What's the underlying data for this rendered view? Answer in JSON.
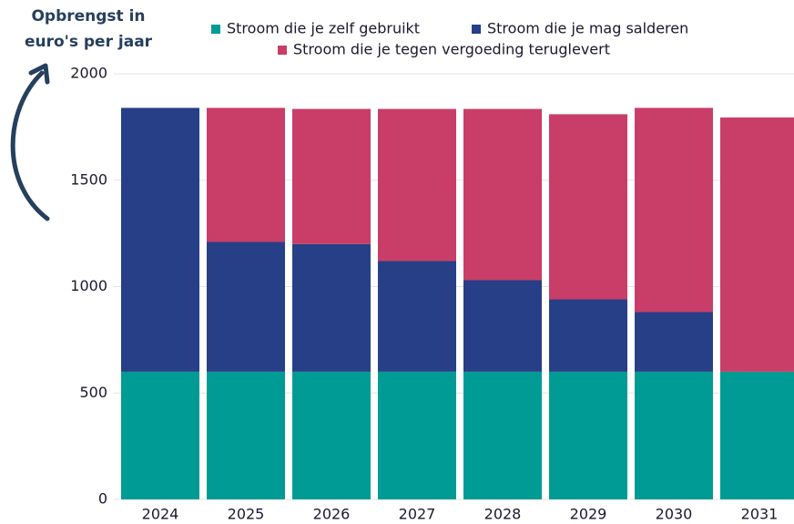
{
  "chart_data": {
    "type": "bar",
    "stacked": true,
    "annotation": [
      "Opbrengst in",
      "euro's per jaar"
    ],
    "categories": [
      "2024",
      "2025",
      "2026",
      "2027",
      "2028",
      "2029",
      "2030",
      "2031"
    ],
    "series": [
      {
        "name": "Stroom die je zelf gebruikt",
        "color": "#009b94",
        "values": [
          600,
          600,
          600,
          600,
          600,
          600,
          600,
          600
        ]
      },
      {
        "name": "Stroom die je mag salderen",
        "color": "#263f86",
        "values": [
          1240,
          610,
          600,
          520,
          430,
          340,
          280,
          0
        ]
      },
      {
        "name": "Stroom die je tegen vergoeding teruglevert",
        "color": "#c83e68",
        "values": [
          0,
          630,
          635,
          715,
          805,
          870,
          960,
          1195
        ]
      }
    ],
    "ylim": [
      0,
      2000
    ],
    "yticks": [
      0,
      500,
      1000,
      1500,
      2000
    ],
    "grid": true,
    "legend": "top"
  }
}
